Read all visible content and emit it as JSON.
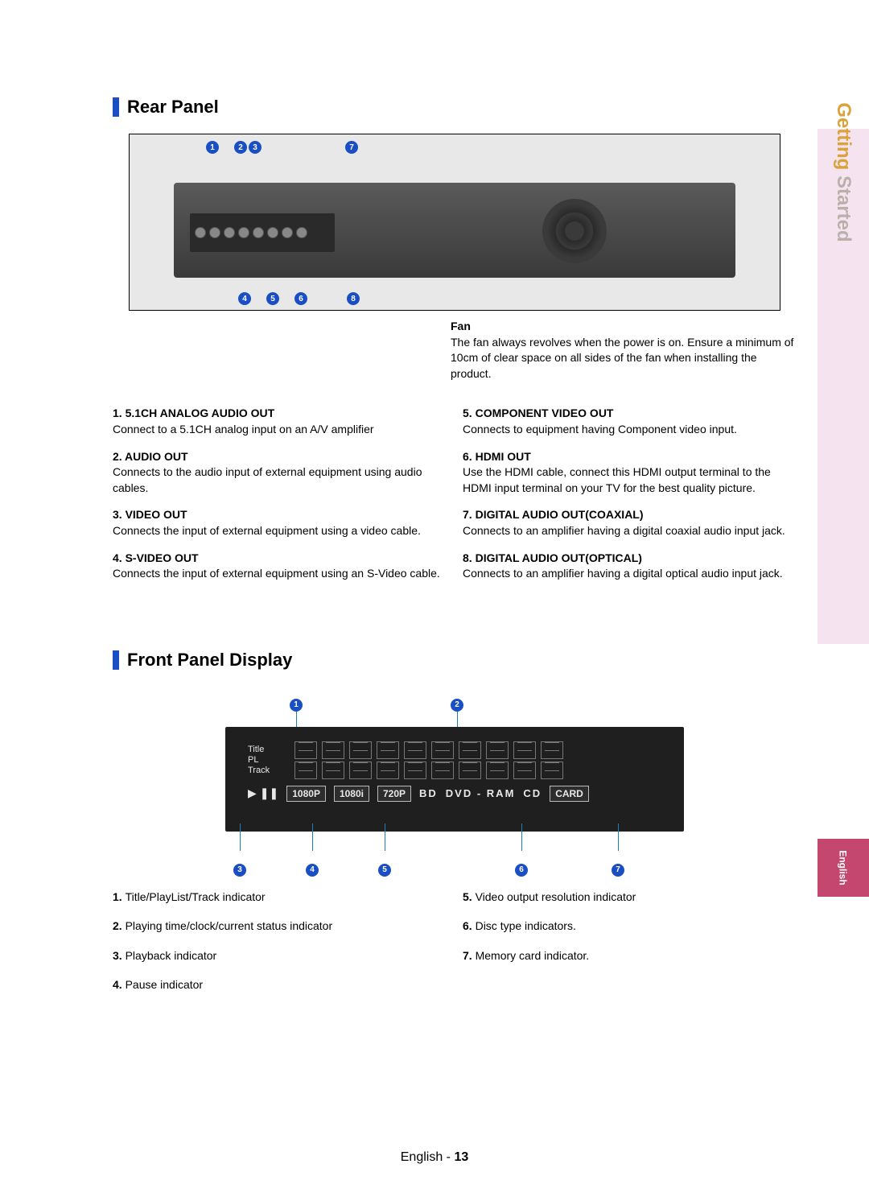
{
  "colors": {
    "accent_blue": "#1a4fc4",
    "callout_line": "#1a7fb8",
    "side_tab_bg": "#f6e3f0",
    "side_tab_orange": "#d9a33a",
    "side_tab_gray": "#b9b1a9",
    "lang_tab_bg": "#c44770"
  },
  "side_tab": {
    "word1": "Getting",
    "word2": "Started"
  },
  "lang_tab": "English",
  "sections": {
    "rear": {
      "title": "Rear Panel",
      "fan": {
        "heading": "Fan",
        "body": "The fan always revolves when the power is on. Ensure a minimum of 10cm of clear space on all sides of the fan when installing the product."
      },
      "items_left": [
        {
          "num": "1.",
          "label": "5.1CH ANALOG AUDIO OUT",
          "desc": "Connect to a 5.1CH analog input on an A/V amplifier"
        },
        {
          "num": "2.",
          "label": "AUDIO OUT",
          "desc": "Connects to the audio input of external equipment using audio cables."
        },
        {
          "num": "3.",
          "label": "VIDEO OUT",
          "desc": "Connects the input of external equipment using a video cable."
        },
        {
          "num": "4.",
          "label": "S-VIDEO OUT",
          "desc": "Connects the input of external equipment using an S-Video cable."
        }
      ],
      "items_right": [
        {
          "num": "5.",
          "label": "COMPONENT VIDEO OUT",
          "desc": "Connects to equipment having Component video input."
        },
        {
          "num": "6.",
          "label": "HDMI OUT",
          "desc": "Use the HDMI cable, connect this HDMI output terminal to the HDMI input terminal on your TV for the best quality picture."
        },
        {
          "num": "7.",
          "label": "DIGITAL AUDIO OUT(COAXIAL)",
          "desc": "Connects to an amplifier having a digital coaxial audio input jack."
        },
        {
          "num": "8.",
          "label": "DIGITAL AUDIO OUT(OPTICAL)",
          "desc": "Connects to an amplifier having a digital optical audio input jack."
        }
      ]
    },
    "front": {
      "title": "Front Panel Display",
      "display": {
        "left_labels": [
          "Title",
          "PL",
          "Track"
        ],
        "res_badges": [
          "1080P",
          "1080i",
          "720P"
        ],
        "disc_labels": [
          "BD",
          "DVD - RAM",
          "CD"
        ],
        "card_label": "CARD",
        "play_glyph": "▶",
        "pause_glyph": "❚❚",
        "segment_columns": 10
      },
      "items_left": [
        {
          "num": "1.",
          "desc": "Title/PlayList/Track indicator"
        },
        {
          "num": "2.",
          "desc": "Playing time/clock/current status indicator"
        },
        {
          "num": "3.",
          "desc": "Playback indicator"
        },
        {
          "num": "4.",
          "desc": "Pause indicator"
        }
      ],
      "items_right": [
        {
          "num": "5.",
          "desc": "Video output resolution indicator"
        },
        {
          "num": "6.",
          "desc": "Disc type indicators."
        },
        {
          "num": "7.",
          "desc": "Memory card indicator."
        }
      ]
    }
  },
  "footer": {
    "text": "English - ",
    "page": "13"
  }
}
